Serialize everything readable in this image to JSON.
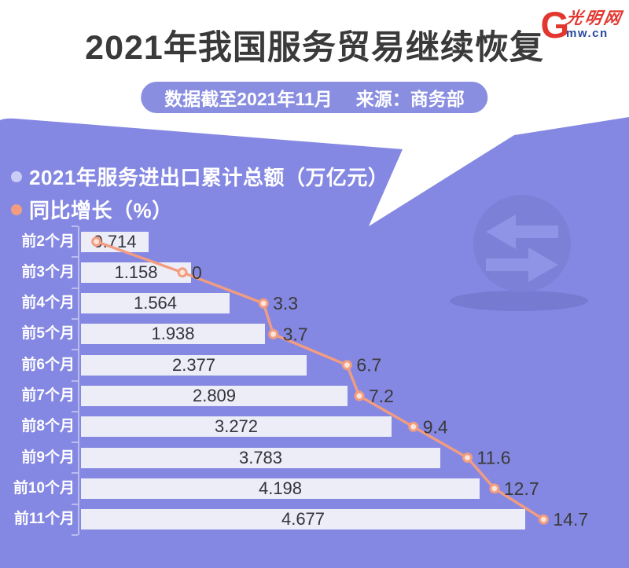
{
  "header": {
    "title": "2021年我国服务贸易继续恢复",
    "badge": {
      "date_note": "数据截至2021年11月",
      "source_note": "来源：商务部"
    },
    "logo": {
      "initial": "G",
      "name": "光明网",
      "domain": "mw.cn"
    }
  },
  "legend": {
    "items": [
      {
        "label": "2021年服务进出口累计总额（万亿元）",
        "color": "#CACDF5"
      },
      {
        "label": "同比增长（%）",
        "color": "#F29C80"
      }
    ]
  },
  "chart_data": {
    "type": "bar",
    "orientation": "horizontal",
    "title": "2021年我国服务贸易继续恢复",
    "categories": [
      "前2个月",
      "前3个月",
      "前4个月",
      "前5个月",
      "前6个月",
      "前7个月",
      "前8个月",
      "前9个月",
      "前10个月",
      "前11个月"
    ],
    "series": [
      {
        "name": "2021年服务进出口累计总额（万亿元）",
        "type": "bar",
        "unit": "万亿元",
        "values": [
          0.714,
          1.158,
          1.564,
          1.938,
          2.377,
          2.809,
          3.272,
          3.783,
          4.198,
          4.677
        ],
        "labels": [
          "0.714",
          "1.158",
          "1.564",
          "1.938",
          "2.377",
          "2.809",
          "3.272",
          "3.783",
          "4.198",
          "4.677"
        ]
      },
      {
        "name": "同比增长（%）",
        "type": "line",
        "unit": "%",
        "values": [
          -3.5,
          0,
          3.3,
          3.7,
          6.7,
          7.2,
          9.4,
          11.6,
          12.7,
          14.7
        ],
        "labels": [
          "",
          "0",
          "3.3",
          "3.7",
          "6.7",
          "7.2",
          "9.4",
          "11.6",
          "12.7",
          "14.7"
        ],
        "note": "first point has no visible label in source; its value is estimated from its plotted position"
      }
    ],
    "bar_value_range": [
      0,
      4.677
    ],
    "line_value_range": [
      -3.5,
      14.7
    ],
    "legend_position": "top-left",
    "grid": false
  },
  "colors": {
    "background": "#8588E2",
    "header_bg": "#FFFFFF",
    "title_text": "#3A3A3A",
    "badge_bg": "#8A8EE1",
    "badge_text": "#FFFFFF",
    "bar_fill": "#EDEDF8",
    "bar_label_text": "#33333C",
    "line": "#F29C80",
    "marker_fill": "#FBE4D8",
    "category_text": "#FFFFFF",
    "line_label_text": "#3A3A3A",
    "axis": "#C3C5F0",
    "watermark_circle": "#7C80D7",
    "watermark_arrow": "#9094E6",
    "watermark_shadow": "#7175CB",
    "logo_red": "#E2372F",
    "logo_blue": "#27489B"
  }
}
